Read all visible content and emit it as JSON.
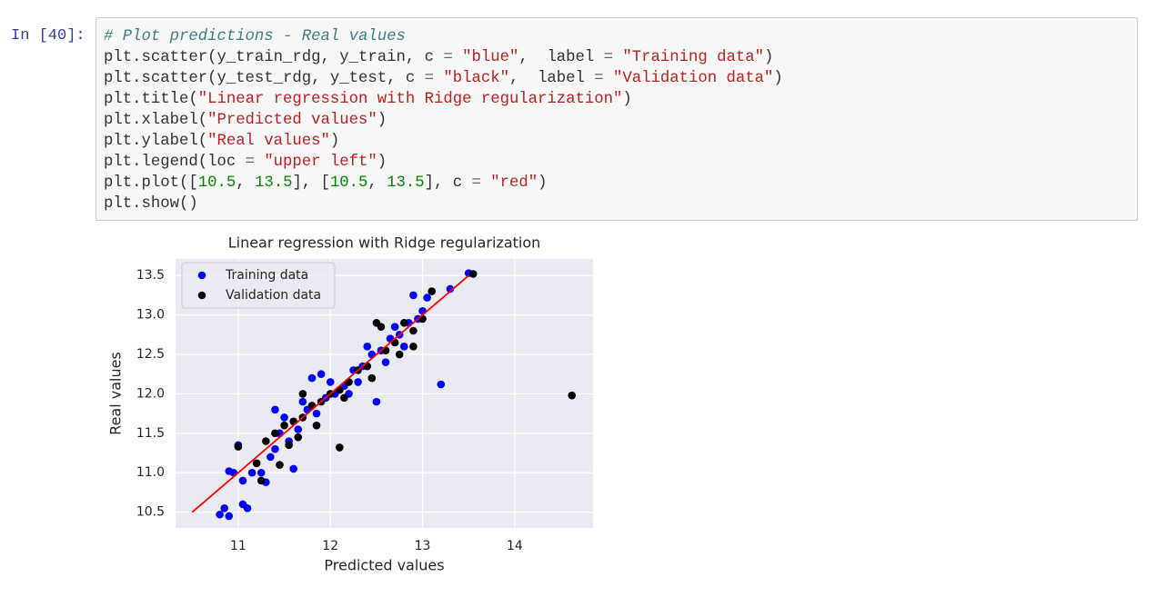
{
  "cell": {
    "prompt": "In [40]:",
    "code": [
      [
        "# Plot predictions - Real values"
      ],
      [
        "plt.scatter(y_train_rdg, y_train, c ",
        "=",
        " ",
        "\"blue\"",
        ",  label ",
        "=",
        " ",
        "\"Training data\"",
        ")"
      ],
      [
        "plt.scatter(y_test_rdg, y_test, c ",
        "=",
        " ",
        "\"black\"",
        ",  label ",
        "=",
        " ",
        "\"Validation data\"",
        ")"
      ],
      [
        "plt.title(",
        "\"Linear regression with Ridge regularization\"",
        ")"
      ],
      [
        "plt.xlabel(",
        "\"Predicted values\"",
        ")"
      ],
      [
        "plt.ylabel(",
        "\"Real values\"",
        ")"
      ],
      [
        "plt.legend(loc ",
        "=",
        " ",
        "\"upper left\"",
        ")"
      ],
      [
        "plt.plot([",
        "10.5",
        ", ",
        "13.5",
        "], [",
        "10.5",
        ", ",
        "13.5",
        "], c ",
        "=",
        " ",
        "\"red\"",
        ")"
      ],
      [
        "plt.show()"
      ]
    ]
  },
  "chart_data": {
    "type": "scatter",
    "title": "Linear regression with Ridge regularization",
    "xlabel": "Predicted values",
    "ylabel": "Real values",
    "xlim": [
      10.32,
      14.85
    ],
    "ylim": [
      10.3,
      13.71
    ],
    "xticks": [
      11,
      12,
      13,
      14
    ],
    "yticks": [
      10.5,
      11.0,
      11.5,
      12.0,
      12.5,
      13.0,
      13.5
    ],
    "grid": true,
    "legend": "upper left",
    "series": [
      {
        "name": "Training data",
        "color": "blue",
        "x": [
          10.8,
          10.9,
          10.85,
          11.05,
          11.1,
          10.9,
          10.95,
          11.0,
          11.05,
          11.15,
          11.25,
          11.3,
          11.6,
          11.4,
          12.5,
          13.2,
          13.5,
          13.05,
          13.3,
          11.8,
          11.35,
          11.45,
          11.55,
          11.65,
          11.75,
          11.85,
          11.95,
          12.05,
          12.15,
          12.25,
          12.35,
          12.45,
          12.55,
          12.65,
          12.75,
          12.85,
          12.95,
          13.0,
          11.5,
          11.7,
          12.0,
          12.2,
          12.4,
          12.6,
          12.8,
          11.9,
          12.3,
          12.7,
          11.4,
          12.9
        ],
        "y": [
          10.47,
          10.45,
          10.55,
          10.6,
          10.55,
          11.02,
          11.0,
          11.35,
          10.9,
          11.0,
          11.0,
          10.88,
          11.05,
          11.8,
          11.9,
          12.12,
          13.53,
          13.22,
          13.33,
          12.2,
          11.2,
          11.5,
          11.4,
          11.55,
          11.8,
          11.75,
          11.95,
          12.0,
          12.1,
          12.3,
          12.35,
          12.5,
          12.55,
          12.7,
          12.75,
          12.9,
          12.95,
          13.05,
          11.7,
          11.9,
          12.15,
          12.0,
          12.6,
          12.4,
          12.6,
          12.25,
          12.15,
          12.85,
          11.3,
          13.25
        ]
      },
      {
        "name": "Validation data",
        "color": "black",
        "x": [
          14.62,
          12.1,
          11.45,
          11.7,
          12.5,
          13.55,
          13.1,
          11.0,
          11.2,
          11.25,
          12.55,
          12.8,
          12.9,
          11.3,
          11.4,
          11.5,
          11.6,
          11.7,
          11.8,
          11.9,
          12.0,
          12.1,
          12.2,
          12.3,
          12.4,
          12.6,
          12.7,
          12.9,
          13.0,
          11.55,
          11.85,
          12.15,
          12.45,
          12.75,
          11.65
        ],
        "y": [
          11.98,
          11.32,
          11.1,
          12.0,
          12.9,
          13.52,
          13.3,
          11.33,
          11.12,
          10.9,
          12.85,
          12.9,
          12.6,
          11.4,
          11.5,
          11.6,
          11.65,
          11.7,
          11.85,
          11.9,
          12.0,
          12.05,
          12.15,
          12.3,
          12.35,
          12.55,
          12.65,
          12.8,
          12.95,
          11.35,
          11.6,
          11.95,
          12.2,
          12.5,
          11.45
        ]
      }
    ],
    "reference_line": {
      "x": [
        10.5,
        13.5
      ],
      "y": [
        10.5,
        13.5
      ],
      "color": "red"
    }
  }
}
